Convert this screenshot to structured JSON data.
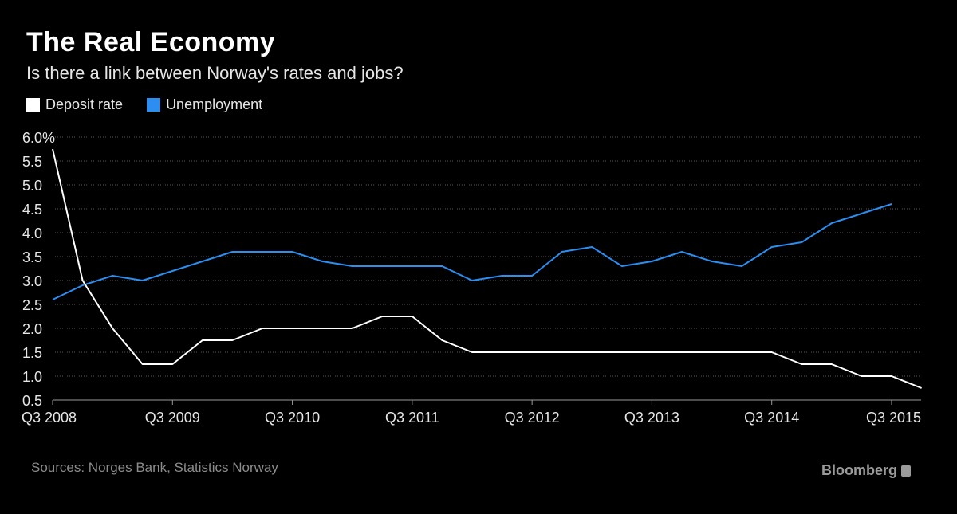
{
  "header": {
    "title": "The Real Economy",
    "subtitle": "Is there a link between Norway's rates and jobs?"
  },
  "legend": [
    {
      "label": "Deposit rate",
      "color": "#ffffff"
    },
    {
      "label": "Unemployment",
      "color": "#2b8ef0"
    }
  ],
  "footer": {
    "source": "Sources: Norges Bank, Statistics Norway",
    "brand": "Bloomberg"
  },
  "chart_data": {
    "type": "line",
    "x": [
      "Q3 2008",
      "Q4 2008",
      "Q1 2009",
      "Q2 2009",
      "Q3 2009",
      "Q4 2009",
      "Q1 2010",
      "Q2 2010",
      "Q3 2010",
      "Q4 2010",
      "Q1 2011",
      "Q2 2011",
      "Q3 2011",
      "Q4 2011",
      "Q1 2012",
      "Q2 2012",
      "Q3 2012",
      "Q4 2012",
      "Q1 2013",
      "Q2 2013",
      "Q3 2013",
      "Q4 2013",
      "Q1 2014",
      "Q2 2014",
      "Q3 2014",
      "Q4 2014",
      "Q1 2015",
      "Q2 2015",
      "Q3 2015",
      "Q4 2015"
    ],
    "x_tick_labels": [
      "Q3 2008",
      "Q3 2009",
      "Q3 2010",
      "Q3 2011",
      "Q3 2012",
      "Q3 2013",
      "Q3 2014",
      "Q3 2015"
    ],
    "y_tick_labels": [
      "6.0%",
      "5.5",
      "5.0",
      "4.5",
      "4.0",
      "3.5",
      "3.0",
      "2.5",
      "2.0",
      "1.5",
      "1.0",
      "0.5"
    ],
    "ylim": [
      0.5,
      6.0
    ],
    "grid": true,
    "legend_position": "top-left",
    "series": [
      {
        "name": "Deposit rate",
        "color": "#ffffff",
        "values": [
          5.75,
          3.0,
          2.0,
          1.25,
          1.25,
          1.75,
          1.75,
          2.0,
          2.0,
          2.0,
          2.0,
          2.25,
          2.25,
          1.75,
          1.5,
          1.5,
          1.5,
          1.5,
          1.5,
          1.5,
          1.5,
          1.5,
          1.5,
          1.5,
          1.5,
          1.25,
          1.25,
          1.0,
          1.0,
          0.75
        ]
      },
      {
        "name": "Unemployment",
        "color": "#2b8ef0",
        "values": [
          2.6,
          2.9,
          3.1,
          3.0,
          3.2,
          3.4,
          3.6,
          3.6,
          3.6,
          3.4,
          3.3,
          3.3,
          3.3,
          3.3,
          3.0,
          3.1,
          3.1,
          3.6,
          3.7,
          3.3,
          3.4,
          3.6,
          3.4,
          3.3,
          3.7,
          3.8,
          4.2,
          4.4,
          4.6,
          null
        ]
      }
    ]
  }
}
